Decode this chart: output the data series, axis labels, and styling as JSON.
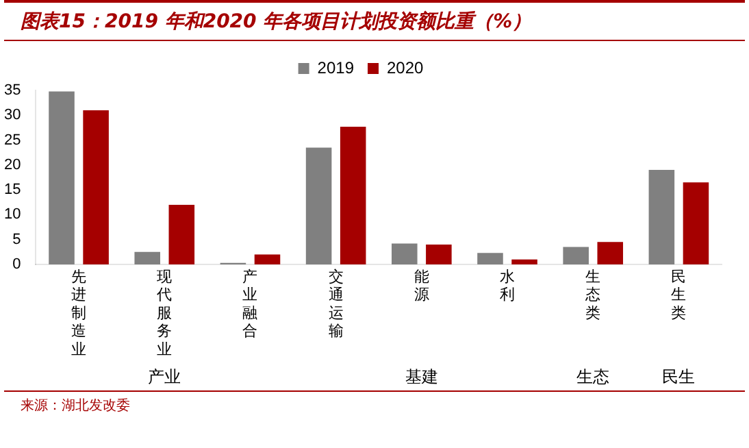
{
  "chart_data": {
    "type": "bar",
    "title": "图表15：2019 年和2020 年各项目计划投资额比重（%）",
    "categories": [
      "先进制造业",
      "现代服务业",
      "产业融合",
      "交通运输",
      "能源",
      "水利",
      "生态类",
      "民生类"
    ],
    "series": [
      {
        "name": "2019",
        "color": "#808080",
        "values": [
          34.8,
          2.5,
          0.3,
          23.5,
          4.2,
          2.3,
          3.5,
          19
        ]
      },
      {
        "name": "2020",
        "color": "#a50000",
        "values": [
          31,
          12,
          2,
          27.7,
          4,
          1,
          4.5,
          16.5
        ]
      }
    ],
    "ylim": [
      0,
      35
    ],
    "yticks": [
      0,
      5,
      10,
      15,
      20,
      25,
      30,
      35
    ],
    "grid": false,
    "legend": "top",
    "annotations": [
      "产业",
      "基建",
      "生态",
      "民生",
      "来源：湖北发改委"
    ]
  }
}
